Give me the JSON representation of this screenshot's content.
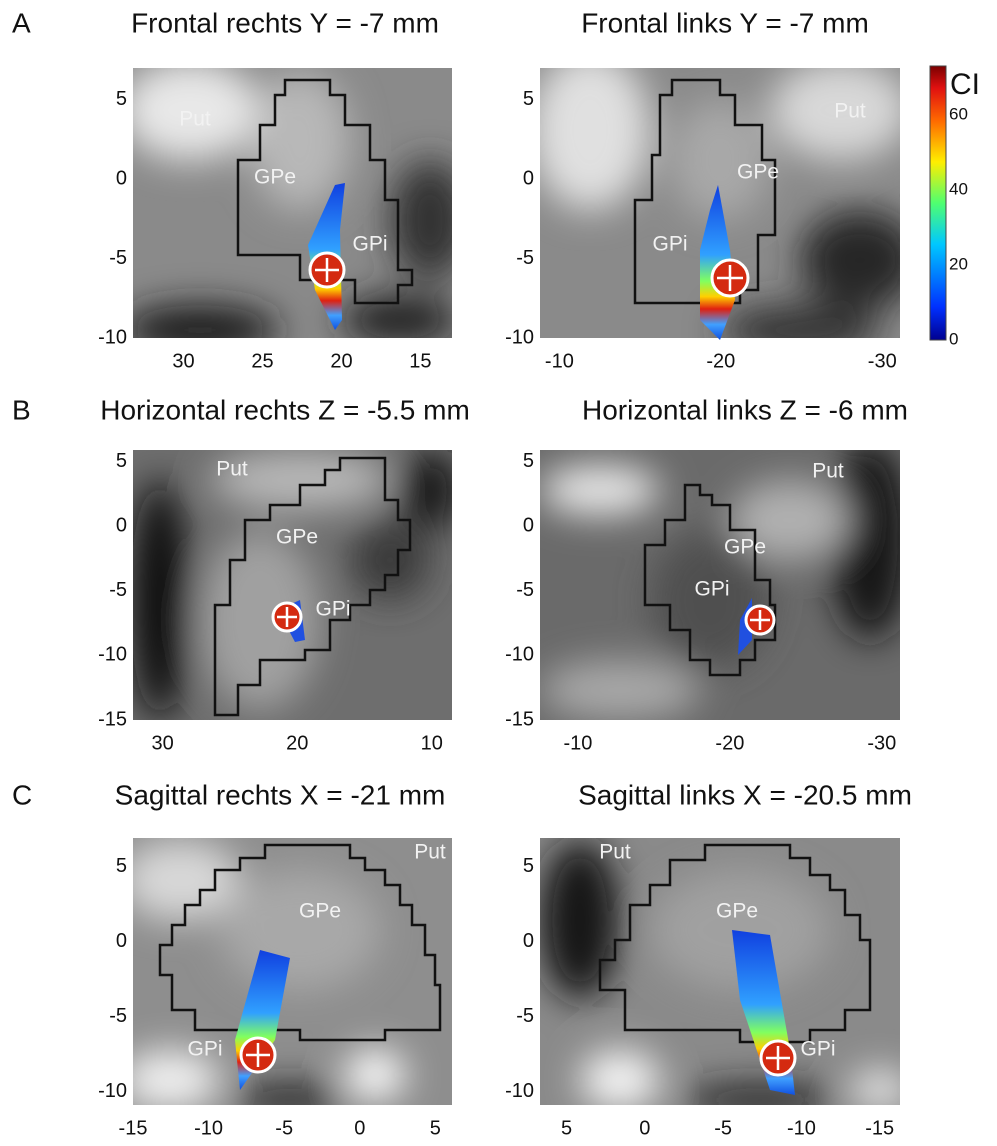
{
  "colorbar": {
    "label": "CI",
    "lim": [
      0,
      73
    ],
    "ticks": [
      0,
      20,
      40,
      60
    ]
  },
  "rows": [
    {
      "letter": "A",
      "panels": [
        {
          "title": "Frontal rechts Y = -7 mm",
          "xlim": [
            33.2,
            13
          ],
          "ylim": [
            -10,
            7
          ],
          "xticks": [
            30,
            25,
            20,
            15
          ],
          "yticks": [
            5,
            0,
            -5,
            -10
          ],
          "regions": [
            "Put",
            "GPe",
            "GPi"
          ]
        },
        {
          "title": "Frontal links Y = -7 mm",
          "xlim": [
            -8.8,
            -31.1
          ],
          "ylim": [
            -10,
            7
          ],
          "xticks": [
            -10,
            -20,
            -30
          ],
          "yticks": [
            5,
            0,
            -5,
            -10
          ],
          "regions": [
            "Put",
            "GPe",
            "GPi"
          ]
        }
      ]
    },
    {
      "letter": "B",
      "panels": [
        {
          "title": "Horizontal rechts Z = -5.5 mm",
          "xlim": [
            32.2,
            8.5
          ],
          "ylim": [
            -15,
            5.9
          ],
          "xticks": [
            30,
            20,
            10
          ],
          "yticks": [
            5,
            0,
            -5,
            -10,
            -15
          ],
          "regions": [
            "Put",
            "GPe",
            "GPi"
          ]
        },
        {
          "title": "Horizontal links Z = -6 mm",
          "xlim": [
            -7.5,
            -31.2
          ],
          "ylim": [
            -15,
            5.9
          ],
          "xticks": [
            -10,
            -20,
            -30
          ],
          "yticks": [
            5,
            0,
            -5,
            -10,
            -15
          ],
          "regions": [
            "Put",
            "GPe",
            "GPi"
          ]
        }
      ]
    },
    {
      "letter": "C",
      "panels": [
        {
          "title": "Sagittal rechts X = -21 mm",
          "xlim": [
            -15,
            6.1
          ],
          "ylim": [
            -10.9,
            6.9
          ],
          "xticks": [
            -15,
            -10,
            -5,
            0,
            5
          ],
          "yticks": [
            5,
            0,
            -5,
            -10
          ],
          "regions": [
            "Put",
            "GPe",
            "GPi"
          ]
        },
        {
          "title": "Sagittal links X = -20.5 mm",
          "xlim": [
            6.7,
            -16.3
          ],
          "ylim": [
            -10.9,
            6.9
          ],
          "xticks": [
            5,
            0,
            -5,
            -10,
            -15
          ],
          "yticks": [
            5,
            0,
            -5,
            -10
          ],
          "regions": [
            "Put",
            "GPe",
            "GPi"
          ]
        }
      ]
    }
  ]
}
